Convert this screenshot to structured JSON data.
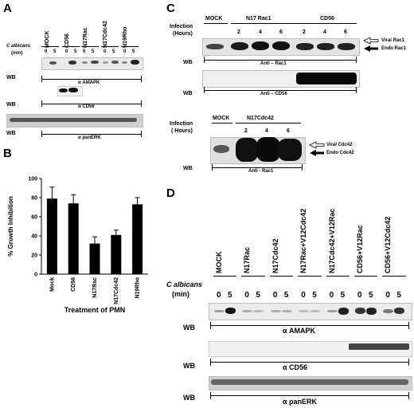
{
  "panels": {
    "a": "A",
    "b": "B",
    "c": "C",
    "d": "D"
  },
  "panelA": {
    "lanes": [
      "MOCK",
      "CD56",
      "N17Rac",
      "N17Cdc42",
      "N19Rho"
    ],
    "c_albicans": "C albicans",
    "min": "(min)",
    "times": [
      "0",
      "5",
      "0",
      "5",
      "0",
      "5",
      "0",
      "5",
      "0",
      "5"
    ],
    "wb1": "WB",
    "ab1": "α AMAPK",
    "wb2": "WB",
    "ab2": "α CD56",
    "wb3": "WB",
    "ab3": "α panERK"
  },
  "panelC": {
    "infection": "Infection",
    "hours": "(Hours)",
    "mock": "MOCK",
    "n17rac1": "N17 Rac1",
    "cd56": "CD56",
    "times": [
      "2",
      "4",
      "6",
      "2",
      "4",
      "6"
    ],
    "viral_rac1": "Viral Rac1",
    "endo_rac1": "Endo Rac1",
    "wb1": "WB",
    "ab1": "Anti – Rac1",
    "wb2": "WB",
    "ab2": "Anti – CD56",
    "infection2": "Infection",
    "hours2": "( Hours)",
    "mock2": "MOCK",
    "n17cdc42": "N17Cdc42",
    "times2": [
      "2",
      "4",
      "6"
    ],
    "viral_cdc42": "Viral Cdc42",
    "endo_cdc42": "Endo Cdc42",
    "wb3": "WB",
    "ab3": "Anti - Rac1"
  },
  "panelD": {
    "lanes": [
      "MOCK",
      "N17Rac",
      "N17Cdc42",
      "N17Rac+V12Cdc42",
      "N17Cdc42+V12Rac",
      "CD56+V12Rac",
      "CD56+V12Cdc42"
    ],
    "c_albicans": "C albicans",
    "min": "(min)",
    "times": [
      "0",
      "5",
      "0",
      "5",
      "0",
      "5",
      "0",
      "5",
      "0",
      "5",
      "0",
      "5",
      "0",
      "5"
    ],
    "wb1": "WB",
    "ab1": "α  AMAPK",
    "wb2": "WB",
    "ab2": "α  CD56",
    "wb3": "WB",
    "ab3": "α  panERK"
  },
  "chart_data": {
    "type": "bar",
    "categories": [
      "Mock",
      "CD56",
      "N17Rac",
      "N17Cdc42",
      "N19Rho"
    ],
    "values": [
      79,
      74,
      32,
      41,
      73
    ],
    "errors": [
      12,
      9,
      7,
      5,
      7
    ],
    "ylabel": "% Growth Inhibition",
    "xlabel": "Treatment of PMN",
    "ylim": [
      0,
      100
    ],
    "yticks": [
      "0",
      "20",
      "40",
      "60",
      "80",
      "100"
    ],
    "bar_color": "#000000"
  }
}
